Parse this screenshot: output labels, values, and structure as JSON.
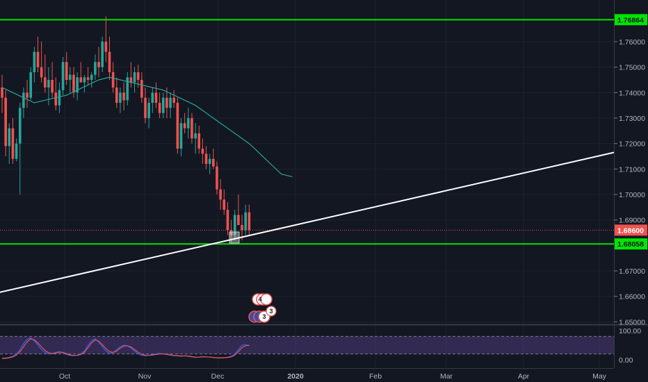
{
  "chart_data": [
    {
      "type": "candlestick",
      "ylim": [
        1.645,
        1.775
      ],
      "price_ticks": [
        "1.76000",
        "1.75000",
        "1.74000",
        "1.73000",
        "1.72000",
        "1.71000",
        "1.70000",
        "1.69000",
        "1.67000",
        "1.66000",
        "1.65000"
      ],
      "x_tick_labels": [
        "Oct",
        "Nov",
        "Dec",
        "2020",
        "Feb",
        "Mar",
        "Apr",
        "May"
      ],
      "horizontal_levels": [
        {
          "label": "1.76864",
          "value": 1.76864,
          "color": "#00e600"
        },
        {
          "label": "1.68058",
          "value": 1.68058,
          "color": "#00e600"
        }
      ],
      "last_price": {
        "label": "1.68600",
        "value": 1.686,
        "color": "#ef5350"
      },
      "trendline": {
        "color": "#ffffff",
        "start": [
          1,
          1.6615
        ],
        "end": [
          205,
          1.7165
        ]
      },
      "moving_average": {
        "color": "#26a69a",
        "points": [
          [
            0,
            1.742
          ],
          [
            3,
            1.74
          ],
          [
            6,
            1.738
          ],
          [
            9,
            1.736
          ],
          [
            12,
            1.737
          ],
          [
            15,
            1.738
          ],
          [
            18,
            1.739
          ],
          [
            21,
            1.741
          ],
          [
            24,
            1.743
          ],
          [
            27,
            1.745
          ],
          [
            30,
            1.746
          ],
          [
            33,
            1.745
          ],
          [
            36,
            1.744
          ],
          [
            39,
            1.743
          ],
          [
            42,
            1.742
          ],
          [
            45,
            1.741
          ],
          [
            48,
            1.739
          ],
          [
            51,
            1.737
          ],
          [
            54,
            1.735
          ],
          [
            57,
            1.732
          ],
          [
            60,
            1.729
          ],
          [
            63,
            1.726
          ],
          [
            66,
            1.723
          ],
          [
            69,
            1.72
          ],
          [
            72,
            1.716
          ],
          [
            75,
            1.712
          ],
          [
            78,
            1.708
          ],
          [
            81,
            1.707
          ]
        ]
      },
      "candles": [
        [
          1.742,
          1.747,
          1.732,
          1.738
        ],
        [
          1.738,
          1.741,
          1.715,
          1.719
        ],
        [
          1.719,
          1.728,
          1.712,
          1.726
        ],
        [
          1.726,
          1.73,
          1.712,
          1.714
        ],
        [
          1.714,
          1.722,
          1.713,
          1.72
        ],
        [
          1.72,
          1.736,
          1.7,
          1.734
        ],
        [
          1.734,
          1.742,
          1.73,
          1.74
        ],
        [
          1.74,
          1.745,
          1.734,
          1.738
        ],
        [
          1.738,
          1.75,
          1.737,
          1.748
        ],
        [
          1.748,
          1.758,
          1.744,
          1.756
        ],
        [
          1.756,
          1.762,
          1.748,
          1.75
        ],
        [
          1.75,
          1.76,
          1.744,
          1.746
        ],
        [
          1.746,
          1.755,
          1.74,
          1.742
        ],
        [
          1.742,
          1.75,
          1.735,
          1.745
        ],
        [
          1.745,
          1.752,
          1.738,
          1.74
        ],
        [
          1.74,
          1.746,
          1.733,
          1.735
        ],
        [
          1.735,
          1.744,
          1.732,
          1.741
        ],
        [
          1.741,
          1.754,
          1.739,
          1.752
        ],
        [
          1.752,
          1.756,
          1.743,
          1.745
        ],
        [
          1.745,
          1.75,
          1.74,
          1.747
        ],
        [
          1.747,
          1.75,
          1.738,
          1.74
        ],
        [
          1.74,
          1.748,
          1.737,
          1.746
        ],
        [
          1.746,
          1.752,
          1.744,
          1.744
        ],
        [
          1.744,
          1.747,
          1.74,
          1.746
        ],
        [
          1.746,
          1.75,
          1.743,
          1.745
        ],
        [
          1.745,
          1.748,
          1.742,
          1.747
        ],
        [
          1.747,
          1.755,
          1.745,
          1.752
        ],
        [
          1.752,
          1.758,
          1.746,
          1.75
        ],
        [
          1.75,
          1.762,
          1.748,
          1.76
        ],
        [
          1.76,
          1.77,
          1.752,
          1.756
        ],
        [
          1.756,
          1.762,
          1.745,
          1.748
        ],
        [
          1.748,
          1.752,
          1.74,
          1.742
        ],
        [
          1.742,
          1.746,
          1.734,
          1.736
        ],
        [
          1.736,
          1.742,
          1.732,
          1.74
        ],
        [
          1.74,
          1.744,
          1.733,
          1.737
        ],
        [
          1.737,
          1.748,
          1.735,
          1.746
        ],
        [
          1.746,
          1.752,
          1.742,
          1.744
        ],
        [
          1.744,
          1.75,
          1.74,
          1.748
        ],
        [
          1.748,
          1.751,
          1.742,
          1.745
        ],
        [
          1.745,
          1.748,
          1.736,
          1.738
        ],
        [
          1.738,
          1.742,
          1.728,
          1.73
        ],
        [
          1.73,
          1.738,
          1.726,
          1.736
        ],
        [
          1.736,
          1.742,
          1.732,
          1.74
        ],
        [
          1.74,
          1.744,
          1.734,
          1.736
        ],
        [
          1.736,
          1.74,
          1.73,
          1.732
        ],
        [
          1.732,
          1.74,
          1.73,
          1.738
        ],
        [
          1.738,
          1.742,
          1.73,
          1.734
        ],
        [
          1.734,
          1.74,
          1.73,
          1.738
        ],
        [
          1.738,
          1.741,
          1.734,
          1.736
        ],
        [
          1.736,
          1.738,
          1.716,
          1.718
        ],
        [
          1.718,
          1.73,
          1.715,
          1.728
        ],
        [
          1.728,
          1.732,
          1.724,
          1.726
        ],
        [
          1.726,
          1.734,
          1.722,
          1.73
        ],
        [
          1.73,
          1.732,
          1.72,
          1.722
        ],
        [
          1.722,
          1.728,
          1.716,
          1.724
        ],
        [
          1.724,
          1.727,
          1.716,
          1.718
        ],
        [
          1.718,
          1.722,
          1.712,
          1.716
        ],
        [
          1.716,
          1.719,
          1.71,
          1.712
        ],
        [
          1.712,
          1.716,
          1.708,
          1.714
        ],
        [
          1.714,
          1.718,
          1.71,
          1.711
        ],
        [
          1.711,
          1.713,
          1.7,
          1.702
        ],
        [
          1.702,
          1.706,
          1.694,
          1.698
        ],
        [
          1.698,
          1.702,
          1.692,
          1.694
        ],
        [
          1.694,
          1.697,
          1.684,
          1.686
        ],
        [
          1.686,
          1.69,
          1.681,
          1.684
        ],
        [
          1.684,
          1.694,
          1.682,
          1.692
        ],
        [
          1.692,
          1.7,
          1.688,
          1.688
        ],
        [
          1.688,
          1.692,
          1.682,
          1.686
        ],
        [
          1.686,
          1.696,
          1.684,
          1.693
        ],
        [
          1.693,
          1.696,
          1.684,
          1.686
        ]
      ]
    },
    {
      "type": "line",
      "name": "stochastic-oscillator",
      "ylim": [
        0,
        100
      ],
      "y_tick_labels": [
        "100.00",
        "0.00"
      ],
      "band": [
        20,
        80
      ],
      "series": [
        {
          "color": "#2962ff",
          "values": [
            5,
            6,
            8,
            12,
            20,
            35,
            55,
            70,
            75,
            65,
            50,
            35,
            25,
            20,
            22,
            25,
            28,
            24,
            18,
            15,
            14,
            16,
            20,
            30,
            50,
            65,
            72,
            60,
            45,
            30,
            22,
            25,
            35,
            45,
            50,
            48,
            40,
            30,
            20,
            15,
            14,
            16,
            18,
            20,
            22,
            20,
            18,
            16,
            14,
            13,
            12,
            14,
            12,
            10,
            8,
            9,
            11,
            10,
            9,
            8,
            7,
            6,
            7,
            9,
            12,
            20,
            35,
            50,
            52,
            48
          ]
        },
        {
          "color": "#ef5350",
          "values": [
            4,
            5,
            7,
            10,
            16,
            28,
            45,
            62,
            72,
            68,
            58,
            44,
            32,
            24,
            21,
            23,
            26,
            25,
            21,
            17,
            15,
            15,
            18,
            26,
            42,
            58,
            68,
            64,
            52,
            38,
            28,
            25,
            30,
            40,
            47,
            48,
            44,
            35,
            26,
            19,
            16,
            15,
            16,
            18,
            20,
            20,
            19,
            17,
            15,
            14,
            13,
            13,
            13,
            11,
            9,
            9,
            10,
            10,
            9,
            8,
            7,
            7,
            7,
            8,
            10,
            16,
            28,
            42,
            48,
            50
          ]
        }
      ]
    }
  ],
  "events": [
    {
      "label": "4",
      "kind": "earnings"
    },
    {
      "label": "3",
      "kind": "dividends"
    },
    {
      "label": "3",
      "kind": "splits"
    }
  ]
}
